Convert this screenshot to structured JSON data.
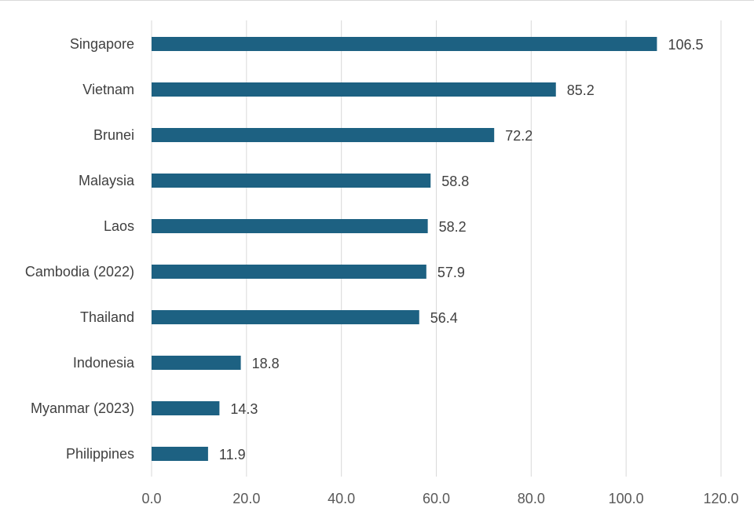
{
  "chart_data": {
    "type": "bar",
    "orientation": "horizontal",
    "title": "",
    "xlabel": "",
    "ylabel": "",
    "categories": [
      "Singapore",
      "Vietnam",
      "Brunei",
      "Malaysia",
      "Laos",
      "Cambodia (2022)",
      "Thailand",
      "Indonesia",
      "Myanmar (2023)",
      "Philippines"
    ],
    "values": [
      106.5,
      85.2,
      72.2,
      58.8,
      58.2,
      57.9,
      56.4,
      18.8,
      14.3,
      11.9
    ],
    "value_labels": [
      "106.5",
      "85.2",
      "72.2",
      "58.8",
      "58.2",
      "57.9",
      "56.4",
      "18.8",
      "14.3",
      "11.9"
    ],
    "xlim": [
      0,
      120
    ],
    "ticks": [
      "0.0",
      "20.0",
      "40.0",
      "60.0",
      "80.0",
      "100.0",
      "120.0"
    ],
    "tick_values": [
      0,
      20,
      40,
      60,
      80,
      100,
      120
    ],
    "grid": "vertical",
    "legend": "none",
    "bar_color": "#1d6182",
    "grid_color": "#d9d9d9"
  }
}
